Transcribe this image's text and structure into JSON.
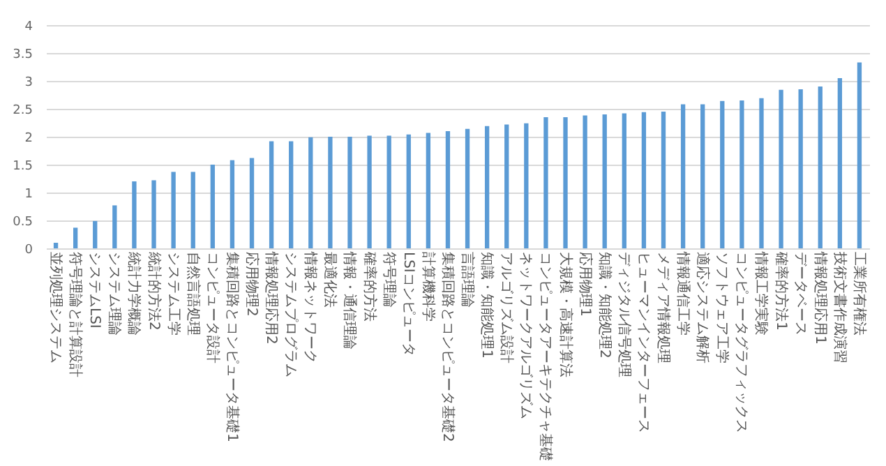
{
  "chart_data": {
    "type": "bar",
    "categories": [
      "並列処理システム",
      "符号理論と計算設計",
      "システムLSI",
      "システム理論",
      "統計力学概論",
      "統計的方法2",
      "システム工学",
      "自然言語処理",
      "コンピュータ設計",
      "集積回路とコンピュータ基礎1",
      "応用物理2",
      "情報処理応用2",
      "システムプログラム",
      "情報ネットワーク",
      "最適化法",
      "情報・通信理論",
      "確率的方法",
      "符号理論",
      "LSIコンピュータ",
      "計算機科学",
      "集積回路とコンピュータ基礎2",
      "言語理論",
      "知識・知能処理1",
      "アルゴリズム設計",
      "ネットワークアルゴリズム",
      "コンピュータアーキテクチャ基礎",
      "大規模・高速計算法",
      "応用物理1",
      "知識・知能処理2",
      "ディジタル信号処理",
      "ヒューマンインターフェース",
      "メディア情報処理",
      "情報通信工学",
      "適応システム解析",
      "ソフトウェア工学",
      "コンピュータグラフィックス",
      "情報工学実験",
      "確率的方法1",
      "データベース",
      "情報処理応用1",
      "技術文書作成演習",
      "工業所有権法"
    ],
    "values": [
      0.1,
      0.37,
      0.49,
      0.77,
      1.2,
      1.22,
      1.37,
      1.37,
      1.5,
      1.58,
      1.62,
      1.92,
      1.92,
      1.99,
      2.0,
      2.0,
      2.02,
      2.02,
      2.04,
      2.07,
      2.1,
      2.14,
      2.19,
      2.22,
      2.24,
      2.35,
      2.35,
      2.38,
      2.4,
      2.42,
      2.44,
      2.45,
      2.58,
      2.58,
      2.64,
      2.65,
      2.69,
      2.84,
      2.85,
      2.9,
      3.05,
      3.33
    ],
    "color": "#5b9bd5",
    "ylim": [
      0,
      4
    ],
    "yticks": [
      0,
      0.5,
      1,
      1.5,
      2,
      2.5,
      3,
      3.5,
      4
    ],
    "grid": "y"
  }
}
